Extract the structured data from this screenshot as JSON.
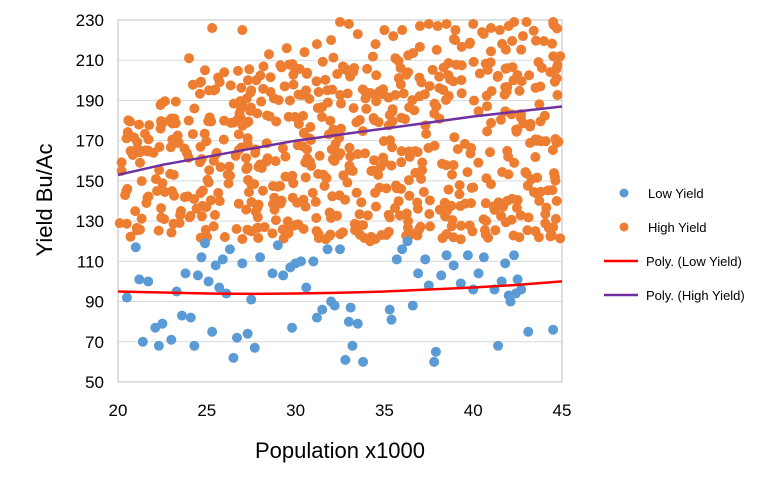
{
  "chart_data": {
    "type": "scatter",
    "xlabel": "Population x1000",
    "ylabel": "Yield Bu/Ac",
    "xlim": [
      20,
      45
    ],
    "ylim": [
      50,
      230
    ],
    "xticks": [
      20,
      25,
      30,
      35,
      40,
      45
    ],
    "yticks": [
      50,
      70,
      90,
      110,
      130,
      150,
      170,
      190,
      210,
      230
    ],
    "grid": "horizontal",
    "legend_position": "right",
    "series": [
      {
        "name": "Low Yield",
        "kind": "points",
        "color": "#5B9BD5",
        "points": [
          [
            20.5,
            92
          ],
          [
            21.0,
            117
          ],
          [
            21.2,
            101
          ],
          [
            21.4,
            70
          ],
          [
            21.7,
            100
          ],
          [
            22.1,
            77
          ],
          [
            22.3,
            68
          ],
          [
            22.5,
            79
          ],
          [
            23.0,
            71
          ],
          [
            23.3,
            95
          ],
          [
            23.6,
            83
          ],
          [
            23.8,
            104
          ],
          [
            24.1,
            82
          ],
          [
            24.3,
            68
          ],
          [
            24.5,
            103
          ],
          [
            24.7,
            112
          ],
          [
            24.9,
            119
          ],
          [
            25.1,
            100
          ],
          [
            25.3,
            75
          ],
          [
            25.5,
            108
          ],
          [
            25.7,
            97
          ],
          [
            25.9,
            111
          ],
          [
            26.1,
            94
          ],
          [
            26.3,
            116
          ],
          [
            26.5,
            62
          ],
          [
            26.7,
            72
          ],
          [
            27.0,
            109
          ],
          [
            27.3,
            74
          ],
          [
            27.5,
            91
          ],
          [
            27.7,
            67
          ],
          [
            28.0,
            112
          ],
          [
            28.7,
            104
          ],
          [
            29.0,
            118
          ],
          [
            29.3,
            103
          ],
          [
            29.7,
            107
          ],
          [
            29.8,
            77
          ],
          [
            30.0,
            109
          ],
          [
            30.3,
            110
          ],
          [
            30.6,
            97
          ],
          [
            31.0,
            110
          ],
          [
            31.2,
            82
          ],
          [
            31.5,
            86
          ],
          [
            31.8,
            116
          ],
          [
            32.0,
            90
          ],
          [
            32.2,
            88
          ],
          [
            32.5,
            116
          ],
          [
            32.8,
            61
          ],
          [
            33.0,
            80
          ],
          [
            33.1,
            87
          ],
          [
            33.2,
            68
          ],
          [
            33.5,
            79
          ],
          [
            33.8,
            60
          ],
          [
            35.3,
            86
          ],
          [
            35.4,
            81
          ],
          [
            35.7,
            111
          ],
          [
            36.0,
            116
          ],
          [
            36.3,
            120
          ],
          [
            36.6,
            88
          ],
          [
            36.9,
            104
          ],
          [
            37.3,
            111
          ],
          [
            37.5,
            98
          ],
          [
            37.9,
            65
          ],
          [
            37.8,
            60
          ],
          [
            38.2,
            103
          ],
          [
            38.5,
            113
          ],
          [
            38.9,
            108
          ],
          [
            39.3,
            99
          ],
          [
            39.7,
            113
          ],
          [
            40.0,
            96
          ],
          [
            40.3,
            104
          ],
          [
            40.6,
            112
          ],
          [
            41.2,
            96
          ],
          [
            41.4,
            68
          ],
          [
            41.6,
            100
          ],
          [
            41.8,
            109
          ],
          [
            42.0,
            93
          ],
          [
            42.1,
            90
          ],
          [
            42.3,
            113
          ],
          [
            42.4,
            94
          ],
          [
            42.5,
            101
          ],
          [
            42.7,
            96
          ],
          [
            43.1,
            75
          ],
          [
            44.5,
            76
          ]
        ]
      },
      {
        "name": "High Yield",
        "kind": "points",
        "color": "#ED7D31",
        "generator": {
          "count": 620,
          "x_range": [
            20.2,
            44.9
          ],
          "y_min": 121,
          "y_max": 229
        },
        "points": [
          [
            20.1,
            129
          ],
          [
            21.1,
            166
          ],
          [
            21.5,
            165
          ],
          [
            21.6,
            139
          ],
          [
            22.0,
            164
          ],
          [
            22.2,
            145
          ],
          [
            22.4,
            176
          ],
          [
            23.0,
            181
          ],
          [
            23.5,
            133
          ],
          [
            24.0,
            211
          ],
          [
            24.3,
            186
          ],
          [
            24.9,
            205
          ],
          [
            25.3,
            226
          ],
          [
            25.4,
            195
          ],
          [
            26.5,
            179
          ],
          [
            27.0,
            225
          ],
          [
            27.5,
            195
          ],
          [
            28.5,
            213
          ],
          [
            29.5,
            216
          ],
          [
            30.5,
            214
          ],
          [
            31.2,
            218
          ],
          [
            32.0,
            220
          ],
          [
            32.5,
            229
          ],
          [
            33.0,
            228
          ],
          [
            33.5,
            223
          ],
          [
            34.5,
            218
          ],
          [
            35.0,
            225
          ],
          [
            35.5,
            222
          ],
          [
            36.0,
            225
          ],
          [
            37.0,
            227
          ],
          [
            37.5,
            228
          ],
          [
            38.0,
            227
          ],
          [
            38.5,
            228
          ],
          [
            39.0,
            225
          ],
          [
            40.0,
            228
          ],
          [
            40.5,
            224
          ],
          [
            41.0,
            226
          ],
          [
            41.5,
            225
          ],
          [
            42.0,
            227
          ],
          [
            42.3,
            229
          ],
          [
            42.8,
            222
          ],
          [
            43.0,
            229
          ],
          [
            44.5,
            229
          ],
          [
            44.9,
            212
          ],
          [
            44.7,
            201
          ],
          [
            44.7,
            169
          ],
          [
            44.6,
            152
          ],
          [
            44.7,
            140
          ],
          [
            44.5,
            127
          ],
          [
            43.7,
            122
          ],
          [
            43.5,
            125
          ],
          [
            43.2,
            177
          ],
          [
            42.6,
            122
          ],
          [
            39.3,
            121
          ],
          [
            34.2,
            120
          ],
          [
            33.8,
            128
          ],
          [
            31.7,
            121
          ],
          [
            29.6,
            124
          ],
          [
            27.5,
            125
          ],
          [
            22.6,
            131
          ]
        ]
      },
      {
        "name": "Poly. (Low Yield)",
        "kind": "line",
        "color": "#FF0000",
        "points": [
          [
            20,
            95
          ],
          [
            22.5,
            94.5
          ],
          [
            25,
            94
          ],
          [
            27.5,
            93.8
          ],
          [
            30,
            94
          ],
          [
            32.5,
            94.4
          ],
          [
            35,
            95
          ],
          [
            37.5,
            96
          ],
          [
            40,
            97
          ],
          [
            42.5,
            98.3
          ],
          [
            45,
            100
          ]
        ]
      },
      {
        "name": "Poly. (High Yield)",
        "kind": "line",
        "color": "#7030A0",
        "points": [
          [
            20,
            153
          ],
          [
            22.5,
            158
          ],
          [
            25,
            162
          ],
          [
            27.5,
            166
          ],
          [
            30,
            170
          ],
          [
            32.5,
            173
          ],
          [
            35,
            176
          ],
          [
            37.5,
            179
          ],
          [
            40,
            182
          ],
          [
            42.5,
            184.5
          ],
          [
            45,
            187
          ]
        ]
      }
    ]
  }
}
